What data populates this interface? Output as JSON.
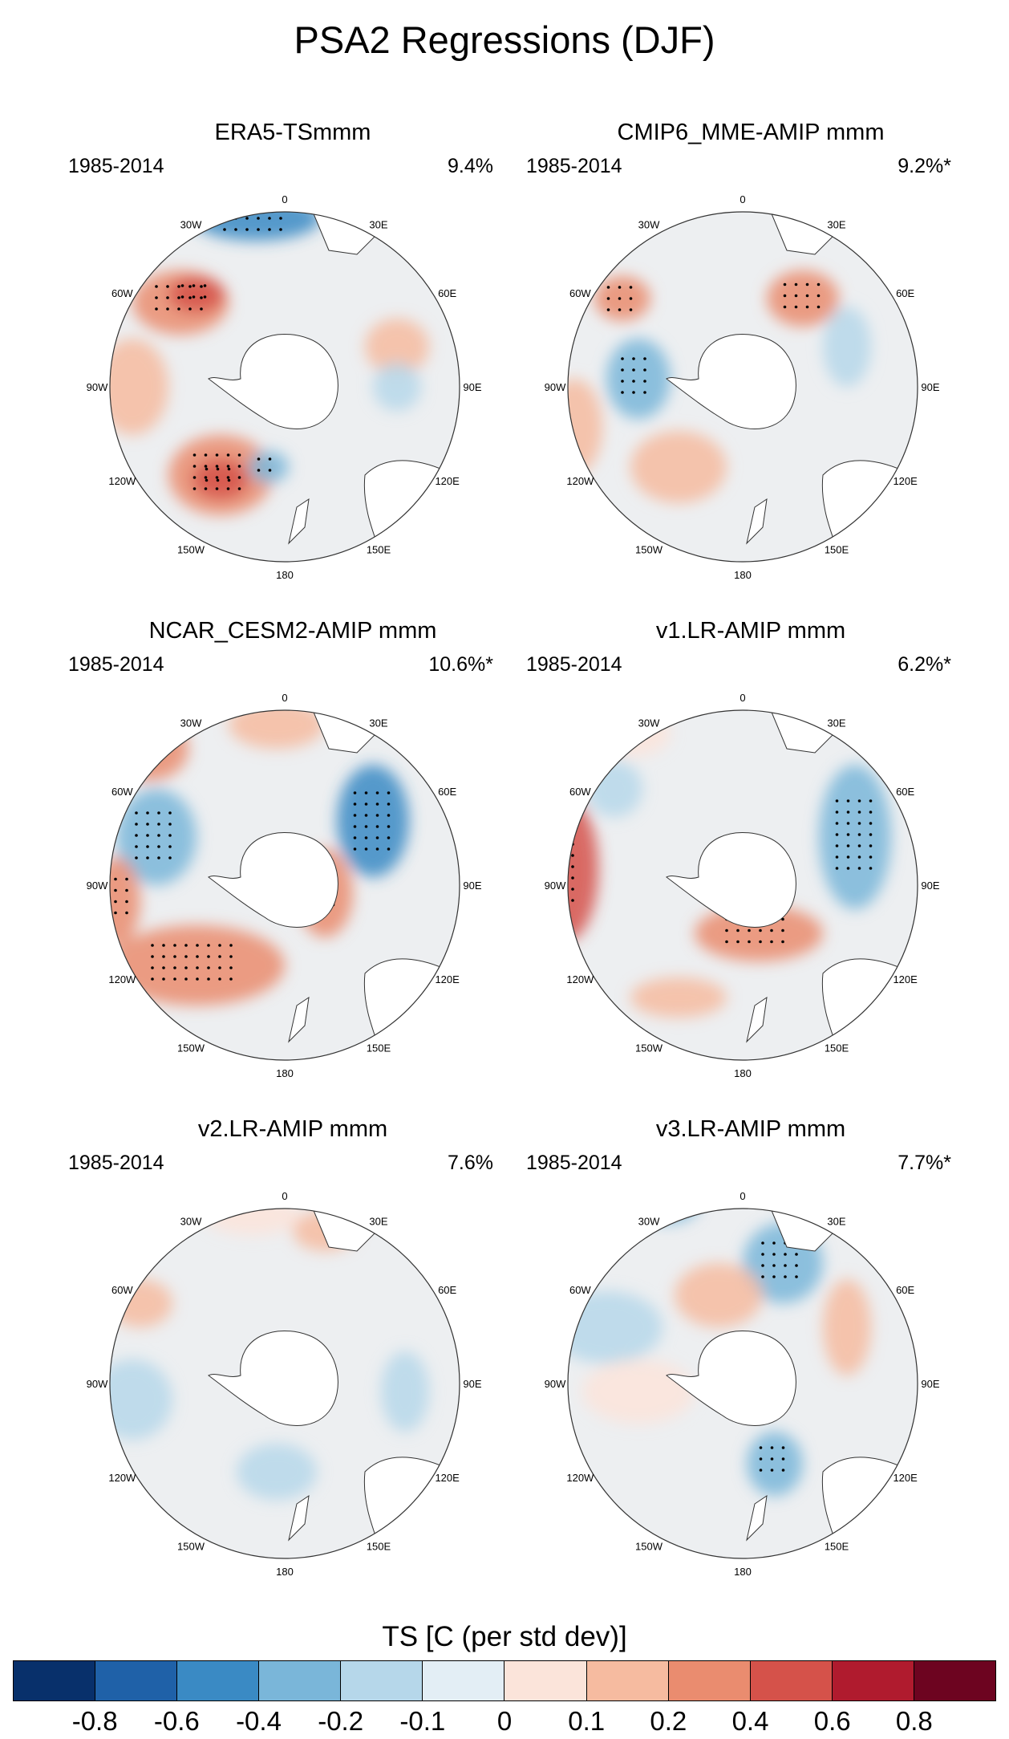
{
  "figure": {
    "title": "PSA2 Regressions (DJF)"
  },
  "panels": [
    {
      "title": "ERA5-TSmmm",
      "years": "1985-2014",
      "percent": "9.4%"
    },
    {
      "title": "CMIP6_MME-AMIP  mmm",
      "years": "1985-2014",
      "percent": "9.2%*"
    },
    {
      "title": "NCAR_CESM2-AMIP  mmm",
      "years": "1985-2014",
      "percent": "10.6%*"
    },
    {
      "title": "v1.LR-AMIP  mmm",
      "years": "1985-2014",
      "percent": "6.2%*"
    },
    {
      "title": "v2.LR-AMIP  mmm",
      "years": "1985-2014",
      "percent": "7.6%"
    },
    {
      "title": "v3.LR-AMIP  mmm",
      "years": "1985-2014",
      "percent": "7.7%*"
    }
  ],
  "map_labels": {
    "lon_0": "0",
    "lon_30e": "30E",
    "lon_60e": "60E",
    "lon_90e": "90E",
    "lon_120e": "120E",
    "lon_150e": "150E",
    "lon_180": "180",
    "lon_150w": "150W",
    "lon_120w": "120W",
    "lon_90w": "90W",
    "lon_60w": "60W",
    "lon_30w": "30W"
  },
  "colorbar": {
    "title": "TS [C (per std dev)]",
    "labels": [
      "-0.8",
      "-0.6",
      "-0.4",
      "-0.2",
      "-0.1",
      "0",
      "0.1",
      "0.2",
      "0.4",
      "0.6",
      "0.8"
    ],
    "colors": [
      "#08306b",
      "#1f61a8",
      "#3a8ac4",
      "#7ab6d9",
      "#b6d7ea",
      "#e3eef5",
      "#fbe4da",
      "#f6bba0",
      "#ea8c6f",
      "#d5524a",
      "#b01b2e",
      "#6d0420"
    ]
  }
}
